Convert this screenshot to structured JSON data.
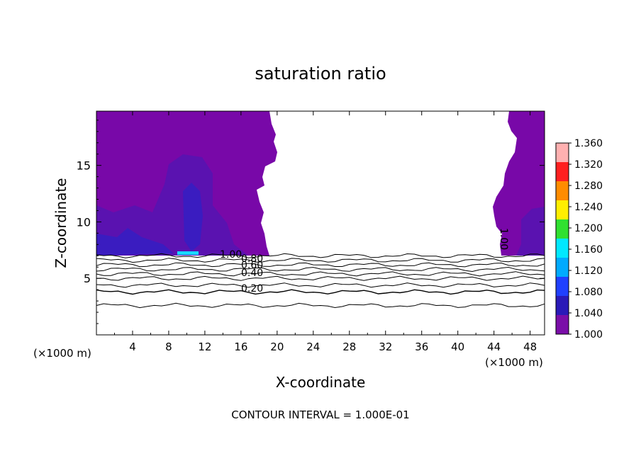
{
  "chart_data": {
    "type": "heatmap",
    "title": "saturation ratio",
    "xlabel": "X-coordinate",
    "ylabel": "Z-coordinate",
    "x_unit": "(×1000 m)",
    "x_unit_right": "(×1000 m)",
    "footer": "CONTOUR INTERVAL = 1.000E-01",
    "xlim": [
      0,
      49.6
    ],
    "ylim": [
      0,
      19.8
    ],
    "x_ticks": [
      4,
      8,
      12,
      16,
      20,
      24,
      28,
      32,
      36,
      40,
      44,
      48
    ],
    "y_ticks": [
      5,
      10,
      15
    ],
    "colorbar": {
      "min": 1.0,
      "max": 1.36,
      "labels": [
        "1.360",
        "1.320",
        "1.280",
        "1.240",
        "1.200",
        "1.160",
        "1.120",
        "1.080",
        "1.040",
        "1.000"
      ],
      "colors": [
        "#ffb0b0",
        "#ff2020",
        "#ff8c00",
        "#ffee00",
        "#30e030",
        "#00e8ff",
        "#00aaff",
        "#2040ff",
        "#2a1ab8",
        "#7a0ea8"
      ]
    },
    "contour_lines": [
      {
        "value": 0.2,
        "z": 4.2
      },
      {
        "value": 0.4,
        "z": 5.2
      },
      {
        "value": 0.5,
        "z": 5.7
      },
      {
        "value": 0.6,
        "z": 6.1
      },
      {
        "value": 0.8,
        "z": 6.5
      },
      {
        "value": 1.0,
        "z": 7.0
      }
    ],
    "contour_labels": [
      "0.20",
      "0.40",
      "0.60",
      "0.80",
      "1.00"
    ],
    "cloud_edge_label": "1.00",
    "filled_regions_colors": {
      "base": "#7808a8",
      "moderate": "#5a12b0",
      "high": "#3a1cc0",
      "peak": "#18d8ff"
    }
  }
}
